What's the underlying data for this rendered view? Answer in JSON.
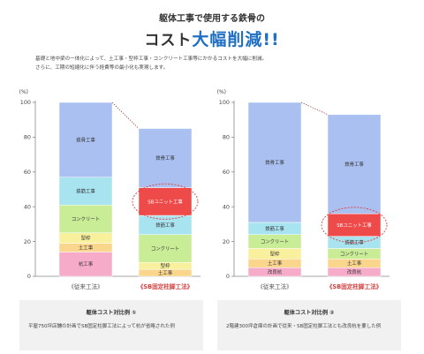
{
  "header": {
    "subtitle": "躯体工事で使用する鉄骨の",
    "title_main": "コスト",
    "title_emphasis": "大幅削減!!",
    "description_line1": "基礎と地中梁の一体化によって、土工事・型枠工事・コンクリート工事等にかかるコストを大幅に削減。",
    "description_line2": "さらに、工期の短縮化に伴う経費等の最小化も実現します。"
  },
  "colors": {
    "鉄骨工事": "#a9c0f0",
    "鉄筋工事": "#a8e3f0",
    "コンクリート": "#c9ec97",
    "型枠": "#f8f09c",
    "土工事": "#fad58c",
    "杭工事": "#f6abc9",
    "改良杭": "#f6abc9",
    "SBユニット工事": "#ef4a4a",
    "connector": "#a04040",
    "highlight_ellipse": "#e04040",
    "label_blue": "#555555",
    "label_red": "#d24141"
  },
  "chart_data": [
    {
      "type": "bar",
      "stacked": true,
      "ylabel": "(%)",
      "ylim": [
        0,
        100
      ],
      "yticks": [
        0,
        20,
        40,
        60,
        80,
        100
      ],
      "categories": [
        "《従来工法》",
        "《SB固定柱脚工法》"
      ],
      "series": [
        {
          "name": "杭工事",
          "values": [
            14,
            0
          ]
        },
        {
          "name": "土工事",
          "values": [
            5,
            4
          ]
        },
        {
          "name": "型枠",
          "values": [
            6,
            4
          ]
        },
        {
          "name": "コンクリート",
          "values": [
            16,
            16
          ]
        },
        {
          "name": "鉄筋工事",
          "values": [
            16,
            11
          ]
        },
        {
          "name": "SBユニット工事",
          "values": [
            0,
            16
          ]
        },
        {
          "name": "鉄骨工事",
          "values": [
            43,
            34
          ]
        }
      ],
      "highlight": "SBユニット工事",
      "caption_title": "躯体コスト対比例 ①",
      "caption_text": "平屋750坪店舗の計画でSB固定柱脚工法によって杭が省略された例"
    },
    {
      "type": "bar",
      "stacked": true,
      "ylabel": "(%)",
      "ylim": [
        0,
        100
      ],
      "yticks": [
        0,
        20,
        40,
        60,
        80,
        100
      ],
      "categories": [
        "《従来工法》",
        "《SB固定柱脚工法》"
      ],
      "series": [
        {
          "name": "改良杭",
          "values": [
            5,
            5
          ]
        },
        {
          "name": "土工事",
          "values": [
            5,
            5
          ]
        },
        {
          "name": "型枠",
          "values": [
            6,
            0
          ]
        },
        {
          "name": "コンクリート",
          "values": [
            8,
            6
          ]
        },
        {
          "name": "鉄筋工事",
          "values": [
            7,
            7
          ]
        },
        {
          "name": "SBユニット工事",
          "values": [
            0,
            13
          ]
        },
        {
          "name": "鉄骨工事",
          "values": [
            69,
            57
          ]
        }
      ],
      "highlight": "SBユニット工事",
      "caption_title": "躯体コスト対比例 ②",
      "caption_text": "2階建300坪倉庫の計画で従来・SB固定柱脚工法とも改良杭を要した例"
    }
  ]
}
